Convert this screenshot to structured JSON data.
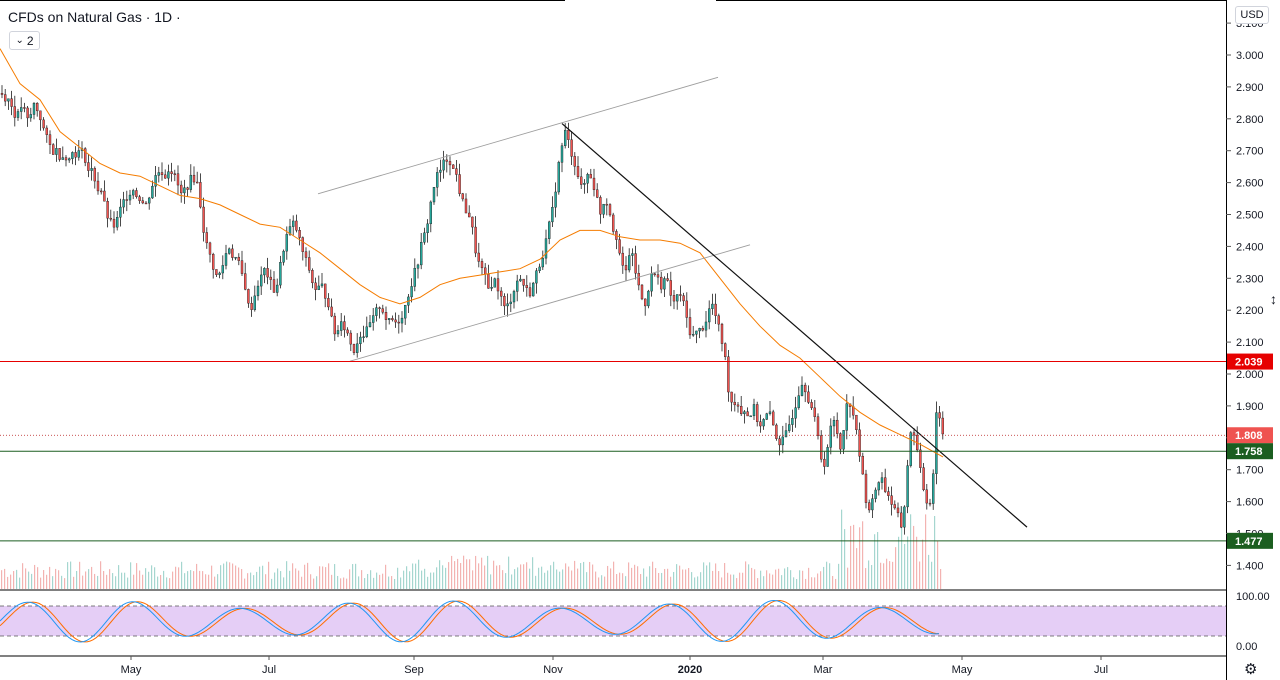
{
  "header": {
    "title": "CFDs on Natural Gas · 1D ·",
    "indicator_count": "2",
    "currency": "USD"
  },
  "colors": {
    "up": "#26a69a",
    "down": "#ef5350",
    "ma": "#f57c00",
    "rsi_blue": "#2196f3",
    "rsi_orange": "#ff6d00",
    "rsi_band": "#e1c6f5",
    "red_level": "#e60000",
    "green_level": "#1b5e20"
  },
  "chart_data": {
    "type": "candlestick",
    "y_ticks": [
      "1.400",
      "1.500",
      "1.600",
      "1.700",
      "1.800",
      "1.900",
      "2.000",
      "2.100",
      "2.200",
      "2.300",
      "2.400",
      "2.500",
      "2.600",
      "2.700",
      "2.800",
      "2.900",
      "3.000",
      "3.100"
    ],
    "x_ticks": [
      "May",
      "Jul",
      "Sep",
      "Nov",
      "2020",
      "Mar",
      "May",
      "Jul"
    ],
    "ylim": [
      1.38,
      3.1
    ],
    "price_tags": [
      {
        "label": "2.039",
        "value": 2.039,
        "style": "red"
      },
      {
        "label": "1.808",
        "value": 1.808,
        "style": "salmon"
      },
      {
        "label": "1.758",
        "value": 1.758,
        "style": "green"
      },
      {
        "label": "1.477",
        "value": 1.477,
        "style": "green"
      }
    ],
    "horizontal_lines": [
      {
        "value": 2.039,
        "color": "red"
      },
      {
        "value": 1.808,
        "color": "dotted"
      },
      {
        "value": 1.758,
        "color": "green"
      },
      {
        "value": 1.477,
        "color": "green"
      }
    ],
    "close_path": [
      [
        0,
        2.88
      ],
      [
        4,
        2.87
      ],
      [
        8,
        2.86
      ],
      [
        12,
        2.83
      ],
      [
        16,
        2.8
      ],
      [
        20,
        2.84
      ],
      [
        24,
        2.82
      ],
      [
        28,
        2.78
      ],
      [
        32,
        2.85
      ],
      [
        36,
        2.83
      ],
      [
        40,
        2.8
      ],
      [
        44,
        2.75
      ],
      [
        48,
        2.72
      ],
      [
        52,
        2.7
      ],
      [
        56,
        2.7
      ],
      [
        60,
        2.68
      ],
      [
        64,
        2.69
      ],
      [
        68,
        2.67
      ],
      [
        72,
        2.7
      ],
      [
        76,
        2.69
      ],
      [
        80,
        2.7
      ],
      [
        84,
        2.68
      ],
      [
        88,
        2.63
      ],
      [
        92,
        2.64
      ],
      [
        96,
        2.58
      ],
      [
        100,
        2.58
      ],
      [
        104,
        2.52
      ],
      [
        108,
        2.48
      ],
      [
        112,
        2.46
      ],
      [
        116,
        2.48
      ],
      [
        120,
        2.52
      ],
      [
        124,
        2.55
      ],
      [
        128,
        2.57
      ],
      [
        132,
        2.58
      ],
      [
        136,
        2.56
      ],
      [
        140,
        2.55
      ],
      [
        144,
        2.52
      ],
      [
        148,
        2.56
      ],
      [
        152,
        2.6
      ],
      [
        156,
        2.63
      ],
      [
        160,
        2.64
      ],
      [
        164,
        2.62
      ],
      [
        168,
        2.65
      ],
      [
        172,
        2.63
      ],
      [
        176,
        2.6
      ],
      [
        180,
        2.56
      ],
      [
        184,
        2.58
      ],
      [
        188,
        2.6
      ],
      [
        192,
        2.62
      ],
      [
        196,
        2.6
      ],
      [
        200,
        2.52
      ],
      [
        204,
        2.42
      ],
      [
        208,
        2.38
      ],
      [
        212,
        2.34
      ],
      [
        216,
        2.3
      ],
      [
        220,
        2.32
      ],
      [
        224,
        2.37
      ],
      [
        228,
        2.4
      ],
      [
        232,
        2.37
      ],
      [
        236,
        2.36
      ],
      [
        240,
        2.32
      ],
      [
        244,
        2.28
      ],
      [
        248,
        2.2
      ],
      [
        252,
        2.22
      ],
      [
        256,
        2.28
      ],
      [
        260,
        2.3
      ],
      [
        264,
        2.33
      ],
      [
        268,
        2.3
      ],
      [
        272,
        2.26
      ],
      [
        276,
        2.28
      ],
      [
        280,
        2.35
      ],
      [
        284,
        2.42
      ],
      [
        288,
        2.45
      ],
      [
        292,
        2.47
      ],
      [
        296,
        2.45
      ],
      [
        300,
        2.4
      ],
      [
        304,
        2.36
      ],
      [
        308,
        2.33
      ],
      [
        312,
        2.28
      ],
      [
        316,
        2.26
      ],
      [
        320,
        2.28
      ],
      [
        324,
        2.25
      ],
      [
        328,
        2.22
      ],
      [
        332,
        2.14
      ],
      [
        336,
        2.12
      ],
      [
        340,
        2.18
      ],
      [
        344,
        2.14
      ],
      [
        348,
        2.12
      ],
      [
        352,
        2.07
      ],
      [
        356,
        2.1
      ],
      [
        360,
        2.13
      ],
      [
        364,
        2.12
      ],
      [
        368,
        2.15
      ],
      [
        372,
        2.17
      ],
      [
        376,
        2.2
      ],
      [
        380,
        2.22
      ],
      [
        384,
        2.18
      ],
      [
        388,
        2.16
      ],
      [
        392,
        2.17
      ],
      [
        396,
        2.16
      ],
      [
        400,
        2.18
      ],
      [
        404,
        2.21
      ],
      [
        408,
        2.26
      ],
      [
        412,
        2.3
      ],
      [
        416,
        2.34
      ],
      [
        420,
        2.4
      ],
      [
        424,
        2.44
      ],
      [
        428,
        2.5
      ],
      [
        432,
        2.58
      ],
      [
        436,
        2.62
      ],
      [
        440,
        2.64
      ],
      [
        444,
        2.67
      ],
      [
        448,
        2.68
      ],
      [
        452,
        2.64
      ],
      [
        456,
        2.62
      ],
      [
        460,
        2.55
      ],
      [
        464,
        2.52
      ],
      [
        468,
        2.5
      ],
      [
        472,
        2.44
      ],
      [
        476,
        2.36
      ],
      [
        480,
        2.33
      ],
      [
        484,
        2.3
      ],
      [
        488,
        2.26
      ],
      [
        492,
        2.3
      ],
      [
        496,
        2.28
      ],
      [
        500,
        2.24
      ],
      [
        504,
        2.2
      ],
      [
        508,
        2.22
      ],
      [
        512,
        2.26
      ],
      [
        516,
        2.29
      ],
      [
        520,
        2.3
      ],
      [
        524,
        2.27
      ],
      [
        528,
        2.25
      ],
      [
        532,
        2.28
      ],
      [
        536,
        2.32
      ],
      [
        540,
        2.36
      ],
      [
        544,
        2.4
      ],
      [
        548,
        2.46
      ],
      [
        552,
        2.52
      ],
      [
        556,
        2.62
      ],
      [
        560,
        2.7
      ],
      [
        564,
        2.76
      ],
      [
        568,
        2.72
      ],
      [
        572,
        2.68
      ],
      [
        576,
        2.64
      ],
      [
        580,
        2.58
      ],
      [
        584,
        2.6
      ],
      [
        588,
        2.64
      ],
      [
        592,
        2.6
      ],
      [
        596,
        2.55
      ],
      [
        600,
        2.5
      ],
      [
        604,
        2.56
      ],
      [
        608,
        2.52
      ],
      [
        612,
        2.46
      ],
      [
        616,
        2.43
      ],
      [
        620,
        2.35
      ],
      [
        624,
        2.3
      ],
      [
        628,
        2.38
      ],
      [
        632,
        2.36
      ],
      [
        636,
        2.3
      ],
      [
        640,
        2.24
      ],
      [
        644,
        2.22
      ],
      [
        648,
        2.28
      ],
      [
        652,
        2.32
      ],
      [
        656,
        2.3
      ],
      [
        660,
        2.28
      ],
      [
        664,
        2.3
      ],
      [
        668,
        2.27
      ],
      [
        672,
        2.22
      ],
      [
        676,
        2.24
      ],
      [
        680,
        2.25
      ],
      [
        684,
        2.2
      ],
      [
        688,
        2.14
      ],
      [
        692,
        2.12
      ],
      [
        696,
        2.13
      ],
      [
        700,
        2.14
      ],
      [
        704,
        2.16
      ],
      [
        708,
        2.2
      ],
      [
        712,
        2.22
      ],
      [
        716,
        2.16
      ],
      [
        720,
        2.12
      ],
      [
        724,
        2.05
      ],
      [
        728,
        1.94
      ],
      [
        732,
        1.9
      ],
      [
        736,
        1.92
      ],
      [
        740,
        1.88
      ],
      [
        744,
        1.89
      ],
      [
        748,
        1.86
      ],
      [
        752,
        1.9
      ],
      [
        756,
        1.86
      ],
      [
        760,
        1.84
      ],
      [
        764,
        1.86
      ],
      [
        768,
        1.88
      ],
      [
        772,
        1.84
      ],
      [
        776,
        1.8
      ],
      [
        780,
        1.78
      ],
      [
        784,
        1.8
      ],
      [
        788,
        1.84
      ],
      [
        792,
        1.88
      ],
      [
        796,
        1.92
      ],
      [
        800,
        1.98
      ],
      [
        804,
        1.96
      ],
      [
        808,
        1.92
      ],
      [
        812,
        1.88
      ],
      [
        816,
        1.82
      ],
      [
        820,
        1.74
      ],
      [
        824,
        1.72
      ],
      [
        828,
        1.8
      ],
      [
        832,
        1.86
      ],
      [
        836,
        1.82
      ],
      [
        840,
        1.76
      ],
      [
        844,
        1.88
      ],
      [
        848,
        1.92
      ],
      [
        852,
        1.88
      ],
      [
        856,
        1.8
      ],
      [
        860,
        1.72
      ],
      [
        864,
        1.62
      ],
      [
        868,
        1.58
      ],
      [
        872,
        1.6
      ],
      [
        876,
        1.66
      ],
      [
        880,
        1.68
      ],
      [
        884,
        1.64
      ],
      [
        888,
        1.62
      ],
      [
        892,
        1.58
      ],
      [
        896,
        1.56
      ],
      [
        900,
        1.52
      ],
      [
        904,
        1.6
      ],
      [
        908,
        1.78
      ],
      [
        912,
        1.84
      ],
      [
        916,
        1.76
      ],
      [
        920,
        1.68
      ],
      [
        924,
        1.62
      ],
      [
        928,
        1.58
      ],
      [
        932,
        1.68
      ],
      [
        936,
        1.92
      ],
      [
        940,
        1.83
      ],
      [
        943,
        1.81
      ]
    ],
    "ma_path": [
      [
        0,
        3.02
      ],
      [
        20,
        2.91
      ],
      [
        40,
        2.86
      ],
      [
        60,
        2.76
      ],
      [
        80,
        2.71
      ],
      [
        100,
        2.66
      ],
      [
        120,
        2.63
      ],
      [
        140,
        2.62
      ],
      [
        160,
        2.59
      ],
      [
        180,
        2.56
      ],
      [
        200,
        2.55
      ],
      [
        220,
        2.53
      ],
      [
        240,
        2.5
      ],
      [
        260,
        2.47
      ],
      [
        280,
        2.46
      ],
      [
        300,
        2.42
      ],
      [
        320,
        2.38
      ],
      [
        340,
        2.33
      ],
      [
        360,
        2.28
      ],
      [
        380,
        2.24
      ],
      [
        400,
        2.22
      ],
      [
        420,
        2.24
      ],
      [
        440,
        2.28
      ],
      [
        460,
        2.3
      ],
      [
        480,
        2.31
      ],
      [
        500,
        2.32
      ],
      [
        520,
        2.33
      ],
      [
        540,
        2.36
      ],
      [
        560,
        2.42
      ],
      [
        580,
        2.45
      ],
      [
        600,
        2.45
      ],
      [
        620,
        2.43
      ],
      [
        640,
        2.42
      ],
      [
        660,
        2.42
      ],
      [
        680,
        2.41
      ],
      [
        700,
        2.38
      ],
      [
        720,
        2.3
      ],
      [
        740,
        2.22
      ],
      [
        760,
        2.15
      ],
      [
        780,
        2.09
      ],
      [
        800,
        2.05
      ],
      [
        820,
        1.99
      ],
      [
        840,
        1.93
      ],
      [
        860,
        1.88
      ],
      [
        880,
        1.84
      ],
      [
        900,
        1.81
      ],
      [
        920,
        1.78
      ],
      [
        943,
        1.74
      ]
    ],
    "trendlines": [
      {
        "from": [
          318,
          2.565
        ],
        "to": [
          718,
          2.93
        ],
        "color": "gray"
      },
      {
        "from": [
          350,
          2.04
        ],
        "to": [
          750,
          2.405
        ],
        "color": "gray"
      },
      {
        "from": [
          562,
          2.785
        ],
        "to": [
          1027,
          1.52
        ],
        "color": "black"
      }
    ],
    "rsi": {
      "ticks": [
        "100.00",
        "0.00"
      ],
      "upper": 80,
      "lower": 20
    }
  }
}
